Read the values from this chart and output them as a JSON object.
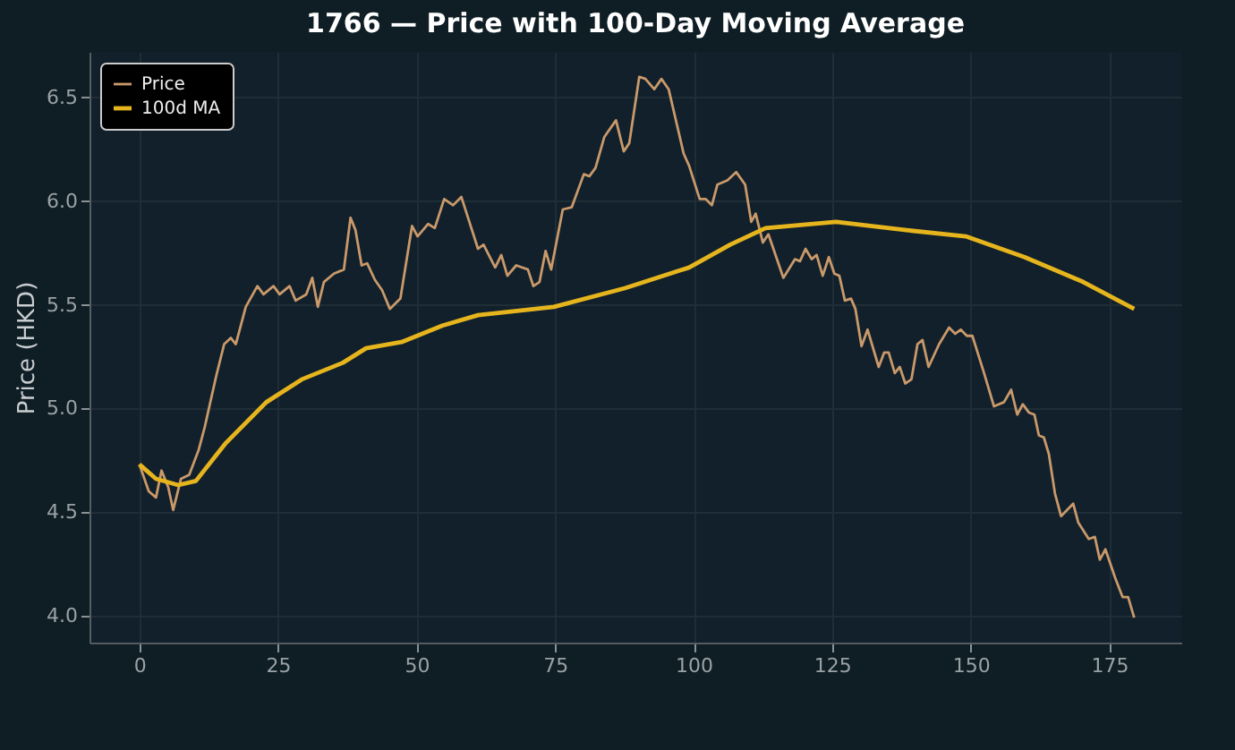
{
  "chart_data": {
    "type": "line",
    "title": "1766 — Price with 100-Day Moving Average",
    "ylabel": "Price (HKD)",
    "xlim": [
      -9,
      188
    ],
    "xticks": [
      0,
      25,
      50,
      75,
      100,
      125,
      150,
      175
    ],
    "ylim": [
      3.87,
      6.72
    ],
    "yticks": [
      {
        "value": 4,
        "label": "4.0"
      },
      4.5,
      {
        "value": 5,
        "label": "5.0"
      },
      5.5,
      {
        "value": 6,
        "label": "6.0"
      },
      6.5
    ],
    "grid": true,
    "legend": "top left",
    "series": [
      {
        "name": "Price",
        "color": "#c9996b",
        "x": [
          0,
          1.7,
          3,
          4,
          5.2,
          6.1,
          7.5,
          9,
          10.7,
          11.8,
          12.8,
          13.9,
          15.3,
          16.5,
          17.4,
          19.2,
          21.3,
          22.4,
          24.2,
          25.3,
          27.1,
          28.2,
          30.1,
          31.2,
          32.2,
          33.3,
          35.1,
          36.9,
          38.1,
          39,
          40.1,
          41.1,
          42.5,
          43.8,
          45.2,
          47.1,
          49.2,
          50.2,
          52.1,
          53.3,
          55,
          56.6,
          58.1,
          61.1,
          62.1,
          64.2,
          65.3,
          66.4,
          68,
          70.1,
          71.1,
          72.2,
          73.3,
          74.3,
          76.4,
          78,
          80.2,
          81.2,
          82.3,
          83.9,
          86,
          87.4,
          88.4,
          90.2,
          91.3,
          92.9,
          94.2,
          95.5,
          98.2,
          99.2,
          101.1,
          102.2,
          103.3,
          104.3,
          106.1,
          107.7,
          109.3,
          110.4,
          111.2,
          112.5,
          113.5,
          116.2,
          118.3,
          119.2,
          120.2,
          121.3,
          122.2,
          123.3,
          124.4,
          125.4,
          126.3,
          127.3,
          128.4,
          129.2,
          130.3,
          131.4,
          133.4,
          134.4,
          135.2,
          136.3,
          137.2,
          138.2,
          139.3,
          140.4,
          141.3,
          142.4,
          144.3,
          146.1,
          147.2,
          148.2,
          149.3,
          150.3,
          152.3,
          154.2,
          156,
          157.3,
          158.4,
          159.4,
          160.5,
          161.5,
          162.3,
          163.2,
          164.1,
          165.2,
          166.3,
          168.5,
          169.4,
          171.3,
          172.4,
          173.3,
          174.3,
          176.1,
          177.4,
          178.4,
          179.5
        ],
        "values": [
          4.73,
          4.6,
          4.57,
          4.7,
          4.62,
          4.51,
          4.66,
          4.68,
          4.8,
          4.91,
          5.03,
          5.16,
          5.31,
          5.34,
          5.31,
          5.49,
          5.59,
          5.55,
          5.59,
          5.55,
          5.59,
          5.52,
          5.55,
          5.63,
          5.49,
          5.61,
          5.65,
          5.67,
          5.92,
          5.86,
          5.69,
          5.7,
          5.62,
          5.57,
          5.48,
          5.53,
          5.88,
          5.83,
          5.89,
          5.87,
          6.01,
          5.98,
          6.02,
          5.77,
          5.79,
          5.68,
          5.74,
          5.64,
          5.69,
          5.67,
          5.59,
          5.61,
          5.76,
          5.67,
          5.96,
          5.97,
          6.13,
          6.12,
          6.16,
          6.31,
          6.39,
          6.24,
          6.28,
          6.6,
          6.59,
          6.54,
          6.59,
          6.54,
          6.23,
          6.17,
          6.01,
          6.01,
          5.98,
          6.08,
          6.1,
          6.14,
          6.08,
          5.9,
          5.94,
          5.8,
          5.84,
          5.63,
          5.72,
          5.71,
          5.77,
          5.72,
          5.74,
          5.64,
          5.73,
          5.65,
          5.64,
          5.52,
          5.53,
          5.48,
          5.3,
          5.38,
          5.2,
          5.27,
          5.27,
          5.17,
          5.2,
          5.12,
          5.14,
          5.31,
          5.33,
          5.2,
          5.31,
          5.39,
          5.36,
          5.38,
          5.35,
          5.35,
          5.18,
          5.01,
          5.03,
          5.09,
          4.97,
          5.02,
          4.98,
          4.97,
          4.87,
          4.86,
          4.78,
          4.59,
          4.48,
          4.54,
          4.45,
          4.37,
          4.38,
          4.27,
          4.32,
          4.18,
          4.09,
          4.09,
          3.99
        ]
      },
      {
        "name": "100d MA",
        "color": "#e6b51e",
        "x": [
          0,
          3,
          7,
          10.2,
          15.5,
          22.9,
          29.3,
          36.7,
          40.9,
          47.3,
          54.7,
          61.1,
          74.8,
          87.6,
          99.2,
          106.6,
          113,
          125.7,
          138.4,
          149.1,
          159.7,
          170.3,
          179.5
        ],
        "values": [
          4.73,
          4.66,
          4.63,
          4.65,
          4.83,
          5.03,
          5.14,
          5.22,
          5.29,
          5.32,
          5.4,
          5.45,
          5.49,
          5.58,
          5.68,
          5.79,
          5.87,
          5.9,
          5.86,
          5.83,
          5.73,
          5.61,
          5.48
        ]
      }
    ]
  }
}
